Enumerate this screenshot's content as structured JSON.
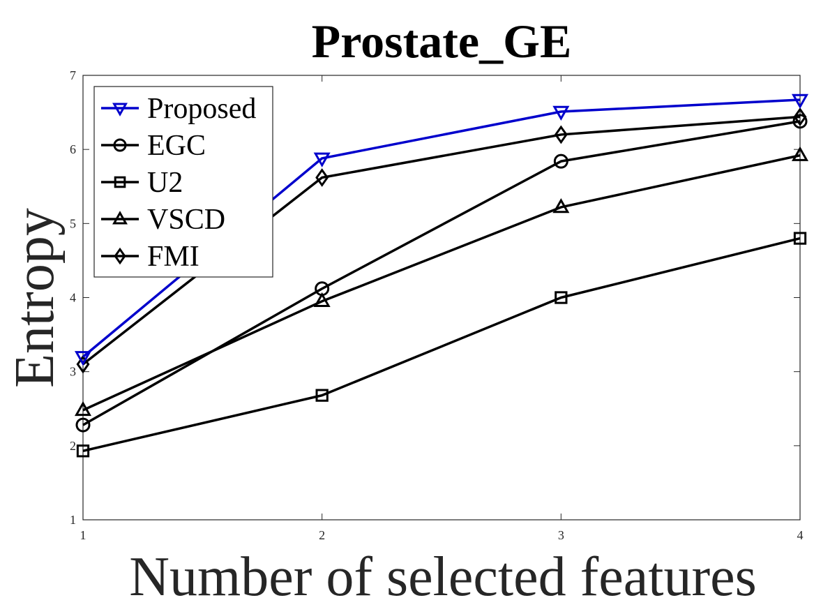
{
  "chart_data": {
    "type": "line",
    "title": "Prostate_GE",
    "xlabel": "Number of selected features",
    "ylabel": "Entropy",
    "x": [
      1,
      2,
      3,
      4
    ],
    "xlim": [
      1,
      4
    ],
    "ylim": [
      1,
      7
    ],
    "xticks": [
      "1",
      "2",
      "3",
      "4"
    ],
    "yticks": [
      "1",
      "2",
      "3",
      "4",
      "5",
      "6",
      "7"
    ],
    "grid": false,
    "legend_position": "top-left",
    "series": [
      {
        "name": "Proposed",
        "values": [
          3.2,
          5.88,
          6.51,
          6.67
        ],
        "color": "#0000cc",
        "marker": "triangle-down"
      },
      {
        "name": "EGC",
        "values": [
          2.28,
          4.12,
          5.84,
          6.38
        ],
        "color": "#000000",
        "marker": "circle"
      },
      {
        "name": "U2",
        "values": [
          1.93,
          2.68,
          4.0,
          4.8
        ],
        "color": "#000000",
        "marker": "square"
      },
      {
        "name": "VSCD",
        "values": [
          2.48,
          3.95,
          5.22,
          5.92
        ],
        "color": "#000000",
        "marker": "triangle-up"
      },
      {
        "name": "FMI",
        "values": [
          3.1,
          5.62,
          6.2,
          6.44
        ],
        "color": "#000000",
        "marker": "diamond"
      }
    ]
  }
}
